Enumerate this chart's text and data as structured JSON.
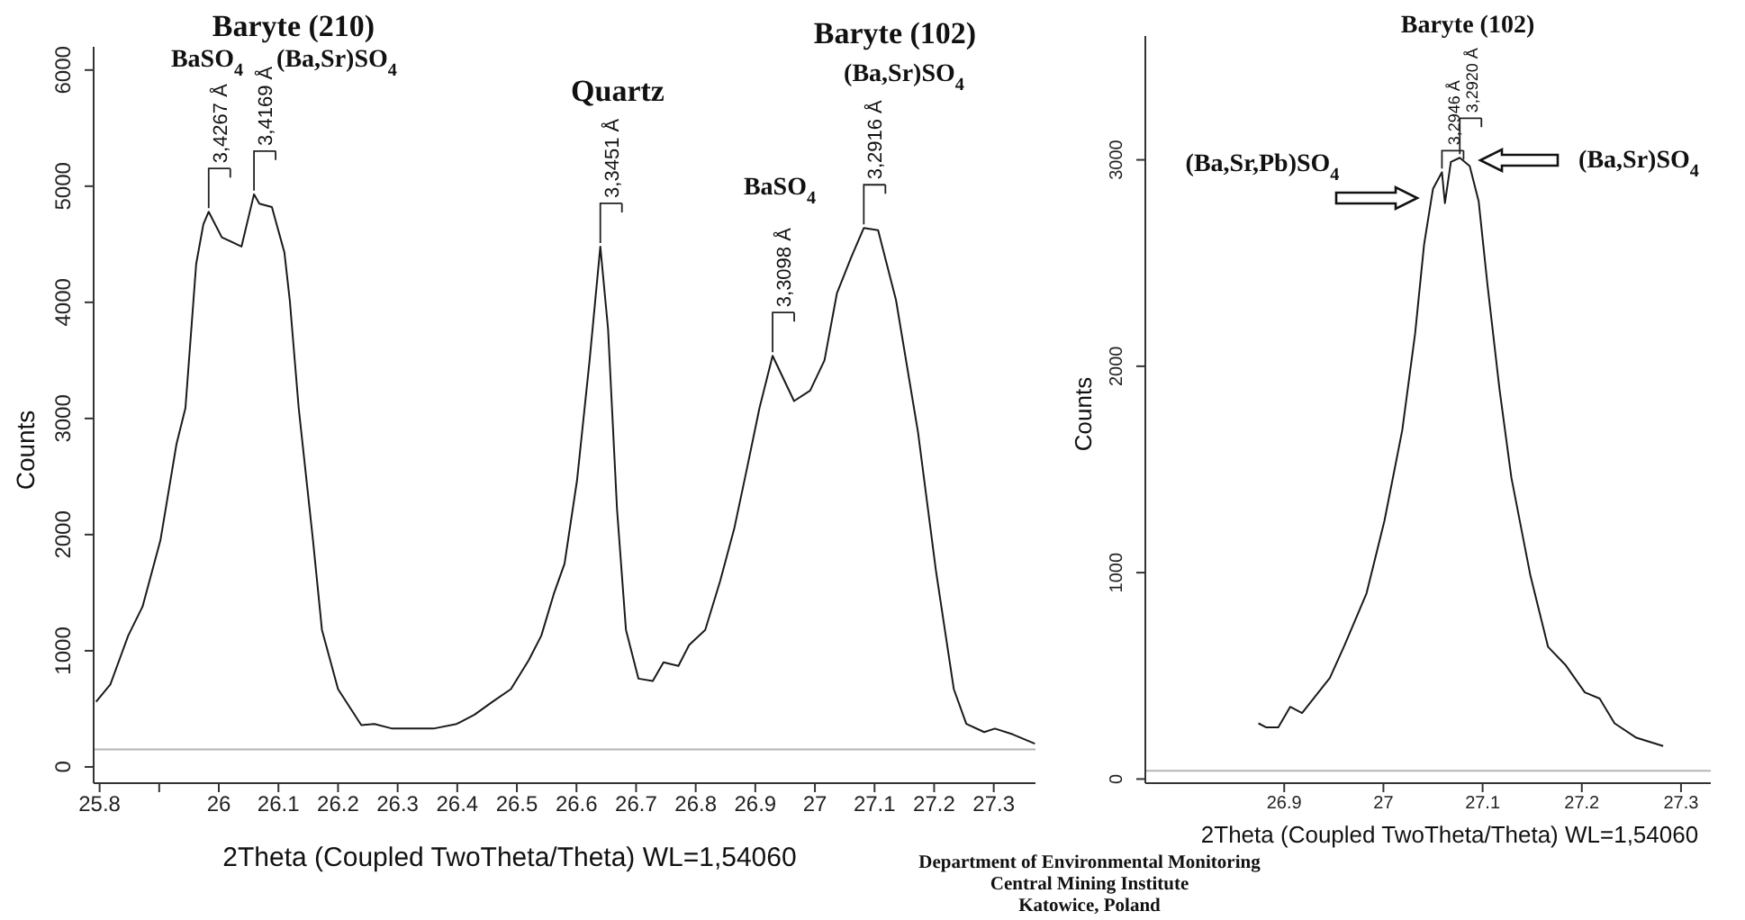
{
  "chart_data": [
    {
      "type": "line",
      "xlabel": "2Theta (Coupled TwoTheta/Theta) WL=1,54060",
      "ylabel": "Counts",
      "x": [
        25.794,
        25.818,
        25.833,
        25.848,
        25.872,
        25.902,
        25.929,
        25.944,
        25.962,
        25.974,
        25.983,
        26.005,
        26.038,
        26.059,
        26.068,
        26.089,
        26.11,
        26.119,
        26.134,
        26.158,
        26.173,
        26.2,
        26.239,
        26.261,
        26.291,
        26.321,
        26.36,
        26.399,
        26.429,
        26.459,
        26.49,
        26.52,
        26.541,
        26.562,
        26.58,
        26.601,
        26.622,
        26.64,
        26.653,
        26.668,
        26.683,
        26.704,
        26.728,
        26.746,
        26.771,
        26.789,
        26.816,
        26.841,
        26.865,
        26.886,
        26.907,
        26.929,
        26.965,
        26.992,
        27.016,
        27.037,
        27.061,
        27.082,
        27.106,
        27.136,
        27.173,
        27.203,
        27.233,
        27.254,
        27.284,
        27.302,
        27.332,
        27.369
      ],
      "series": [
        {
          "color": "#1a1a1a",
          "values": [
            560,
            710,
            920,
            1130,
            1380,
            1950,
            2780,
            3090,
            4330,
            4670,
            4780,
            4560,
            4480,
            4930,
            4850,
            4820,
            4430,
            4020,
            3090,
            1950,
            1180,
            670,
            360,
            370,
            330,
            330,
            330,
            370,
            450,
            560,
            670,
            920,
            1130,
            1490,
            1750,
            2470,
            3500,
            4480,
            3770,
            2220,
            1180,
            760,
            740,
            900,
            870,
            1050,
            1180,
            1600,
            2060,
            2570,
            3090,
            3540,
            3150,
            3240,
            3500,
            4080,
            4390,
            4640,
            4620,
            4020,
            2880,
            1690,
            670,
            370,
            300,
            330,
            280,
            200
          ]
        }
      ],
      "xlim": [
        25.79,
        27.37
      ],
      "ylim": [
        -140,
        6200
      ],
      "xticks": [
        25.8,
        {
          "value": 25.9,
          "label": null
        },
        26,
        26.1,
        26.2,
        26.3,
        26.4,
        26.5,
        26.6,
        26.7,
        26.8,
        26.9,
        27,
        27.1,
        27.2,
        27.3
      ],
      "yticks": [
        0,
        1000,
        2000,
        3000,
        4000,
        5000,
        6000
      ],
      "ref_lines": [
        {
          "axis": "y",
          "value": 150,
          "color": "#b4b4b4"
        }
      ],
      "annotations": [
        {
          "text": "3,4267 Å",
          "x": 25.983,
          "y": 4780
        },
        {
          "text": "3,4169 Å",
          "x": 26.059,
          "y": 4930
        },
        {
          "text": "3,3451 Å",
          "x": 26.64,
          "y": 4480
        },
        {
          "text": "3,3098 Å",
          "x": 26.929,
          "y": 3540
        },
        {
          "text": "3,2916 Å",
          "x": 27.082,
          "y": 4640
        },
        "Baryte (210)",
        "BaSO$_{4}$",
        "(Ba,Sr)SO$_{4}$",
        "Quartz",
        "BaSO$_{4}$",
        "Baryte (102)",
        "(Ba,Sr)SO$_{4}$",
        "Department of Environmental Monitoring",
        "Central Mining Institute",
        "Katowice, Poland"
      ]
    },
    {
      "type": "line",
      "xlabel": "2Theta (Coupled TwoTheta/Theta) WL=1,54060",
      "ylabel": "Counts",
      "x": [
        26.874,
        26.882,
        26.894,
        26.906,
        26.918,
        26.946,
        26.961,
        26.983,
        27.001,
        27.019,
        27.032,
        27.041,
        27.05,
        27.059,
        27.062,
        27.068,
        27.077,
        27.087,
        27.096,
        27.105,
        27.117,
        27.129,
        27.148,
        27.166,
        27.184,
        27.203,
        27.218,
        27.233,
        27.255,
        27.282
      ],
      "series": [
        {
          "color": "#1a1a1a",
          "values": [
            270,
            250,
            250,
            350,
            320,
            490,
            650,
            900,
            1250,
            1690,
            2160,
            2590,
            2860,
            2940,
            2790,
            2990,
            3010,
            2970,
            2800,
            2390,
            1890,
            1460,
            990,
            640,
            550,
            420,
            390,
            270,
            200,
            160
          ]
        }
      ],
      "xlim": [
        26.76,
        27.33
      ],
      "ylim": [
        -20,
        3600
      ],
      "xticks": [
        26.9,
        27,
        27.1,
        27.2,
        27.3
      ],
      "yticks": [
        0,
        1000,
        2000,
        3000
      ],
      "ref_lines": [
        {
          "axis": "y",
          "value": 40,
          "color": "#b4b4b4"
        }
      ],
      "annotations": [
        {
          "text": "3,2946 Å",
          "x": 27.059,
          "y": 2940
        },
        {
          "text": "3,2920 Å",
          "x": 27.077,
          "y": 3010
        },
        "Baryte (102)",
        "(Ba,Sr,Pb)SO$_{4}$",
        "(Ba,Sr)SO$_{4}$"
      ]
    }
  ]
}
